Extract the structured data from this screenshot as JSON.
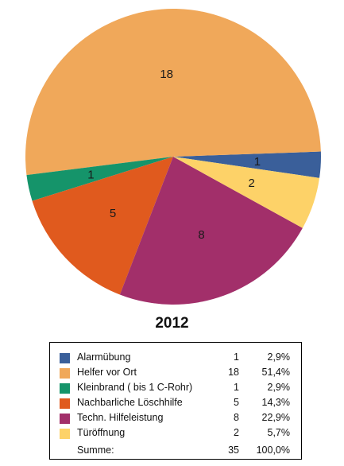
{
  "chart_data": {
    "type": "pie",
    "title": "2012",
    "slices": [
      {
        "name": "Alarmübung",
        "value": 1,
        "percent": "2,9%",
        "color": "#3a5f9a"
      },
      {
        "name": "Helfer vor Ort",
        "value": 18,
        "percent": "51,4%",
        "color": "#f0a85a"
      },
      {
        "name": "Kleinbrand ( bis 1 C-Rohr)",
        "value": 1,
        "percent": "2,9%",
        "color": "#15946a"
      },
      {
        "name": "Nachbarliche Löschhilfe",
        "value": 5,
        "percent": "14,3%",
        "color": "#e05a1e"
      },
      {
        "name": "Techn. Hilfeleistung",
        "value": 8,
        "percent": "22,9%",
        "color": "#a22f6a"
      },
      {
        "name": "Türöffnung",
        "value": 2,
        "percent": "5,7%",
        "color": "#fdd268"
      }
    ],
    "total": {
      "label": "Summe:",
      "value": 35,
      "percent": "100,0%"
    }
  }
}
